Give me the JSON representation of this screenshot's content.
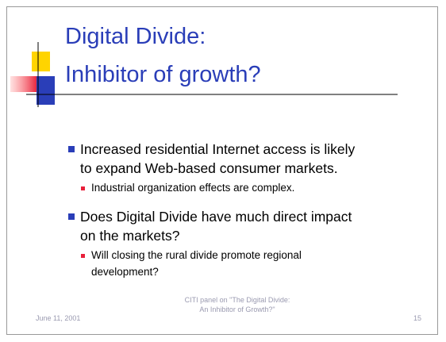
{
  "title": [
    "Digital Divide:",
    "Inhibitor of growth?"
  ],
  "bullets": [
    {
      "lines": [
        "Increased residential Internet access is likely",
        "to expand Web-based consumer markets."
      ],
      "sub": [
        {
          "lines": [
            "Industrial organization effects are complex."
          ]
        }
      ]
    },
    {
      "lines": [
        "Does Digital Divide have much direct impact",
        "on the markets?"
      ],
      "sub": [
        {
          "lines": [
            "Will closing the rural divide promote regional",
            "development?"
          ]
        }
      ]
    }
  ],
  "footer": {
    "date": "June 11, 2001",
    "center": [
      "CITI panel on \"The Digital Divide:",
      "An Inhibitor of Growth?\""
    ],
    "page": "15"
  }
}
